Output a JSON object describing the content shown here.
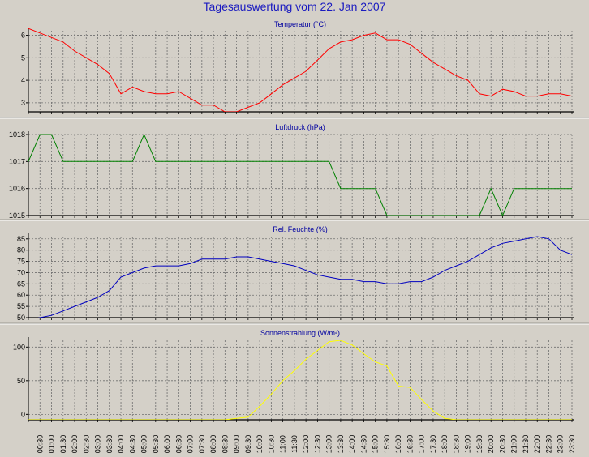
{
  "page_title": "Tagesauswertung vom 22. Jan 2007",
  "time_labels": [
    "00:30",
    "01:00",
    "01:30",
    "02:00",
    "02:30",
    "03:00",
    "03:30",
    "04:00",
    "04:30",
    "05:00",
    "05:30",
    "06:00",
    "06:30",
    "07:00",
    "07:30",
    "08:00",
    "08:30",
    "09:00",
    "09:30",
    "10:00",
    "10:30",
    "11:00",
    "11:30",
    "12:00",
    "12:30",
    "13:00",
    "13:30",
    "14:00",
    "14:30",
    "15:00",
    "15:30",
    "16:00",
    "16:30",
    "17:00",
    "17:30",
    "18:00",
    "18:30",
    "19:00",
    "19:30",
    "20:00",
    "20:30",
    "21:00",
    "21:30",
    "22:00",
    "22:30",
    "23:00",
    "23:30"
  ],
  "chart_data": [
    {
      "type": "line",
      "title": "Temperatur (°C)",
      "color": "#ff0000",
      "ylim": [
        2.6,
        6.2
      ],
      "yticks": [
        3,
        4,
        5,
        6
      ],
      "x": [
        "00:00",
        "00:30",
        "01:00",
        "01:30",
        "02:00",
        "02:30",
        "03:00",
        "03:30",
        "04:00",
        "04:30",
        "05:00",
        "05:30",
        "06:00",
        "06:30",
        "07:00",
        "07:30",
        "08:00",
        "08:30",
        "09:00",
        "09:30",
        "10:00",
        "10:30",
        "11:00",
        "11:30",
        "12:00",
        "12:30",
        "13:00",
        "13:30",
        "14:00",
        "14:30",
        "15:00",
        "15:30",
        "16:00",
        "16:30",
        "17:00",
        "17:30",
        "18:00",
        "18:30",
        "19:00",
        "19:30",
        "20:00",
        "20:30",
        "21:00",
        "21:30",
        "22:00",
        "22:30",
        "23:00",
        "23:30"
      ],
      "values": [
        6.3,
        6.1,
        5.9,
        5.7,
        5.3,
        5.0,
        4.7,
        4.3,
        3.4,
        3.7,
        3.5,
        3.4,
        3.4,
        3.5,
        3.2,
        2.9,
        2.9,
        2.6,
        2.6,
        2.8,
        3.0,
        3.4,
        3.8,
        4.1,
        4.4,
        4.9,
        5.4,
        5.7,
        5.8,
        6.0,
        6.1,
        5.8,
        5.8,
        5.6,
        5.2,
        4.8,
        4.5,
        4.2,
        4.0,
        3.4,
        3.3,
        3.6,
        3.5,
        3.3,
        3.3,
        3.4,
        3.4,
        3.3
      ]
    },
    {
      "type": "line",
      "title": "Luftdruck (hPa)",
      "color": "#008000",
      "ylim": [
        1015,
        1018
      ],
      "yticks": [
        1015,
        1016,
        1017,
        1018
      ],
      "x": [
        "00:00",
        "00:30",
        "01:00",
        "01:30",
        "02:00",
        "02:30",
        "03:00",
        "03:30",
        "04:00",
        "04:30",
        "05:00",
        "05:30",
        "06:00",
        "06:30",
        "07:00",
        "07:30",
        "08:00",
        "08:30",
        "09:00",
        "09:30",
        "10:00",
        "10:30",
        "11:00",
        "11:30",
        "12:00",
        "12:30",
        "13:00",
        "13:30",
        "14:00",
        "14:30",
        "15:00",
        "15:30",
        "16:00",
        "16:30",
        "17:00",
        "17:30",
        "18:00",
        "18:30",
        "19:00",
        "19:30",
        "20:00",
        "20:30",
        "21:00",
        "21:30",
        "22:00",
        "22:30",
        "23:00",
        "23:30"
      ],
      "values": [
        1017,
        1018,
        1018,
        1017,
        1017,
        1017,
        1017,
        1017,
        1017,
        1017,
        1018,
        1017,
        1017,
        1017,
        1017,
        1017,
        1017,
        1017,
        1017,
        1017,
        1017,
        1017,
        1017,
        1017,
        1017,
        1017,
        1017,
        1016,
        1016,
        1016,
        1016,
        1015,
        1015,
        1015,
        1015,
        1015,
        1015,
        1015,
        1015,
        1015,
        1016,
        1015,
        1016,
        1016,
        1016,
        1016,
        1016,
        1016
      ]
    },
    {
      "type": "line",
      "title": "Rel. Feuchte (%)",
      "color": "#0000c0",
      "ylim": [
        50,
        86
      ],
      "yticks": [
        50,
        55,
        60,
        65,
        70,
        75,
        80,
        85
      ],
      "x": [
        "00:00",
        "00:30",
        "01:00",
        "01:30",
        "02:00",
        "02:30",
        "03:00",
        "03:30",
        "04:00",
        "04:30",
        "05:00",
        "05:30",
        "06:00",
        "06:30",
        "07:00",
        "07:30",
        "08:00",
        "08:30",
        "09:00",
        "09:30",
        "10:00",
        "10:30",
        "11:00",
        "11:30",
        "12:00",
        "12:30",
        "13:00",
        "13:30",
        "14:00",
        "14:30",
        "15:00",
        "15:30",
        "16:00",
        "16:30",
        "17:00",
        "17:30",
        "18:00",
        "18:30",
        "19:00",
        "19:30",
        "20:00",
        "20:30",
        "21:00",
        "21:30",
        "22:00",
        "22:30",
        "23:00",
        "23:30"
      ],
      "values": [
        49,
        50,
        51,
        53,
        55,
        57,
        59,
        62,
        68,
        70,
        72,
        73,
        73,
        73,
        74,
        76,
        76,
        76,
        77,
        77,
        76,
        75,
        74,
        73,
        71,
        69,
        68,
        67,
        67,
        66,
        66,
        65,
        65,
        66,
        66,
        68,
        71,
        73,
        75,
        78,
        81,
        83,
        84,
        85,
        86,
        85,
        80,
        78
      ]
    },
    {
      "type": "line",
      "title": "Sonnenstrahlung (W/m²)",
      "color": "#ffff00",
      "ylim": [
        -8,
        110
      ],
      "yticks": [
        0,
        50,
        100
      ],
      "x": [
        "00:00",
        "00:30",
        "01:00",
        "01:30",
        "02:00",
        "02:30",
        "03:00",
        "03:30",
        "04:00",
        "04:30",
        "05:00",
        "05:30",
        "06:00",
        "06:30",
        "07:00",
        "07:30",
        "08:00",
        "08:30",
        "09:00",
        "09:30",
        "10:00",
        "10:30",
        "11:00",
        "11:30",
        "12:00",
        "12:30",
        "13:00",
        "13:30",
        "14:00",
        "14:30",
        "15:00",
        "15:30",
        "16:00",
        "16:30",
        "17:00",
        "17:30",
        "18:00",
        "18:30",
        "19:00",
        "19:30",
        "20:00",
        "20:30",
        "21:00",
        "21:30",
        "22:00",
        "22:30",
        "23:00",
        "23:30"
      ],
      "values": [
        -8,
        -8,
        -8,
        -8,
        -8,
        -8,
        -8,
        -8,
        -8,
        -8,
        -8,
        -8,
        -8,
        -8,
        -8,
        -8,
        -8,
        -8,
        -6,
        -4,
        12,
        30,
        50,
        65,
        82,
        95,
        108,
        110,
        103,
        90,
        78,
        72,
        42,
        40,
        22,
        5,
        -6,
        -8,
        -8,
        -8,
        -8,
        -8,
        -8,
        -8,
        -8,
        -8,
        -8,
        -8
      ]
    }
  ]
}
